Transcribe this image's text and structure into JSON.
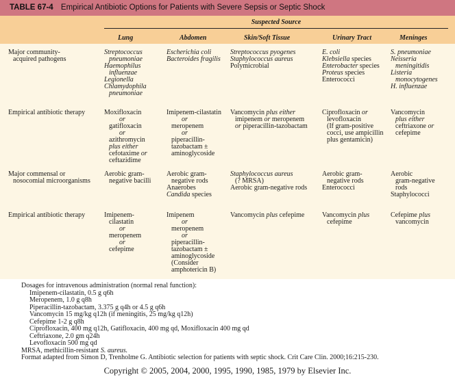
{
  "title": {
    "number": "TABLE 67-4",
    "text": "Empirical Antibiotic Options for Patients with Severe Sepsis or Septic Shock"
  },
  "colors": {
    "title_bar": "#cf7681",
    "header_band": "#f8cf97",
    "body": "#fdf6e4"
  },
  "header": {
    "group": "Suspected Source",
    "columns": [
      "Lung",
      "Abdomen",
      "Skin/Soft Tissue",
      "Urinary Tract",
      "Meninges"
    ]
  },
  "rows": [
    {
      "label": [
        [
          [
            "Major community-",
            false
          ]
        ],
        [
          [
            "acquired pathogens",
            false
          ]
        ]
      ],
      "label_indent": [
        0,
        1
      ],
      "cells": [
        {
          "lines": [
            [
              [
                "Streptococcus",
                true
              ]
            ],
            [
              [
                "pneumoniae",
                true
              ]
            ],
            [
              [
                "Haemophilus",
                true
              ]
            ],
            [
              [
                "influenzae",
                true
              ]
            ],
            [
              [
                "Legionella",
                true
              ]
            ],
            [
              [
                "Chlamydophila",
                true
              ]
            ],
            [
              [
                "pneumoniae",
                true
              ]
            ]
          ],
          "indent": [
            0,
            1,
            0,
            1,
            0,
            0,
            1
          ]
        },
        {
          "lines": [
            [
              [
                "Escherichia coli",
                true
              ]
            ],
            [
              [
                "Bacteroides fragilis",
                true
              ]
            ]
          ],
          "indent": [
            0,
            0
          ]
        },
        {
          "lines": [
            [
              [
                "Streptococcus pyogenes",
                true
              ]
            ],
            [
              [
                "Staphylococcus aureus",
                true
              ]
            ],
            [
              [
                "Polymicrobial",
                false
              ]
            ]
          ],
          "indent": [
            0,
            0,
            0
          ]
        },
        {
          "lines": [
            [
              [
                "E. coli",
                true
              ]
            ],
            [
              [
                "Klebsiella",
                true
              ],
              [
                " species",
                false
              ]
            ],
            [
              [
                "Enterobacter",
                true
              ],
              [
                " species",
                false
              ]
            ],
            [
              [
                "Proteus",
                true
              ],
              [
                " species",
                false
              ]
            ],
            [
              [
                "Enterococci",
                false
              ]
            ]
          ],
          "indent": [
            0,
            0,
            0,
            0,
            0
          ]
        },
        {
          "lines": [
            [
              [
                "S. pneumoniae",
                true
              ]
            ],
            [
              [
                "Neisseria",
                true
              ]
            ],
            [
              [
                "meningitidis",
                true
              ]
            ],
            [
              [
                "Listeria",
                true
              ]
            ],
            [
              [
                "monocytogenes",
                true
              ]
            ],
            [
              [
                "H. influenzae",
                true
              ]
            ]
          ],
          "indent": [
            0,
            0,
            1,
            0,
            1,
            0
          ]
        }
      ]
    },
    {
      "label": [
        [
          [
            "Empirical antibiotic therapy",
            false
          ]
        ]
      ],
      "label_indent": [
        0
      ],
      "cells": [
        {
          "lines": [
            [
              [
                "Moxifloxacin",
                false
              ]
            ],
            [
              [
                "or",
                true
              ]
            ],
            [
              [
                "gatifloxacin",
                false
              ]
            ],
            [
              [
                "or",
                true
              ]
            ],
            [
              [
                "azithromycin",
                false
              ]
            ],
            [
              [
                "plus either",
                true
              ]
            ],
            [
              [
                "cefotaxime ",
                false
              ],
              [
                "or",
                true
              ]
            ],
            [
              [
                "ceftazidime",
                false
              ]
            ]
          ],
          "indent": [
            0,
            2,
            1,
            2,
            1,
            1,
            1,
            1
          ]
        },
        {
          "lines": [
            [
              [
                "Imipenem-cilastatin",
                false
              ]
            ],
            [
              [
                "or",
                true
              ]
            ],
            [
              [
                "meropenem",
                false
              ]
            ],
            [
              [
                "or",
                true
              ]
            ],
            [
              [
                "piperacillin-",
                false
              ]
            ],
            [
              [
                "tazobactam ±",
                false
              ]
            ],
            [
              [
                "aminoglycoside",
                false
              ]
            ]
          ],
          "indent": [
            0,
            2,
            1,
            2,
            1,
            1,
            1
          ]
        },
        {
          "lines": [
            [
              [
                "Vancomycin ",
                false
              ],
              [
                "plus either",
                true
              ]
            ],
            [
              [
                "imipenem ",
                false
              ],
              [
                "or",
                true
              ],
              [
                " meropenem",
                false
              ]
            ],
            [
              [
                "or",
                true
              ],
              [
                " piperacillin-tazobactam",
                false
              ]
            ]
          ],
          "indent": [
            0,
            1,
            1
          ]
        },
        {
          "lines": [
            [
              [
                "Ciprofloxacin ",
                false
              ],
              [
                "or",
                true
              ]
            ],
            [
              [
                "levofloxacin",
                false
              ]
            ],
            [
              [
                "(If gram-positive",
                false
              ]
            ],
            [
              [
                "cocci, use ampicillin",
                false
              ]
            ],
            [
              [
                "plus gentamicin)",
                false
              ]
            ]
          ],
          "indent": [
            0,
            1,
            1,
            1,
            1
          ]
        },
        {
          "lines": [
            [
              [
                "Vancomycin",
                false
              ]
            ],
            [
              [
                "plus either",
                true
              ]
            ],
            [
              [
                "ceftriaxone ",
                false
              ],
              [
                "or",
                true
              ]
            ],
            [
              [
                "cefepime",
                false
              ]
            ]
          ],
          "indent": [
            0,
            1,
            1,
            1
          ]
        }
      ]
    },
    {
      "label": [
        [
          [
            "Major commensal or",
            false
          ]
        ],
        [
          [
            "nosocomial microorganisms",
            false
          ]
        ]
      ],
      "label_indent": [
        0,
        1
      ],
      "cells": [
        {
          "lines": [
            [
              [
                "Aerobic gram-",
                false
              ]
            ],
            [
              [
                "negative bacilli",
                false
              ]
            ]
          ],
          "indent": [
            0,
            1
          ]
        },
        {
          "lines": [
            [
              [
                "Aerobic gram-",
                false
              ]
            ],
            [
              [
                "negative rods",
                false
              ]
            ],
            [
              [
                "Anaerobes",
                false
              ]
            ],
            [
              [
                "Candida",
                true
              ],
              [
                " species",
                false
              ]
            ]
          ],
          "indent": [
            0,
            1,
            0,
            0
          ]
        },
        {
          "lines": [
            [
              [
                "Staphylococcus aureus",
                true
              ]
            ],
            [
              [
                "(? MRSA)",
                false
              ]
            ],
            [
              [
                "Aerobic gram-negative rods",
                false
              ]
            ]
          ],
          "indent": [
            0,
            1,
            0
          ]
        },
        {
          "lines": [
            [
              [
                "Aerobic gram-",
                false
              ]
            ],
            [
              [
                "negative rods",
                false
              ]
            ],
            [
              [
                "Enterococci",
                false
              ]
            ]
          ],
          "indent": [
            0,
            1,
            0
          ]
        },
        {
          "lines": [
            [
              [
                "Aerobic",
                false
              ]
            ],
            [
              [
                "gram-negative",
                false
              ]
            ],
            [
              [
                "rods",
                false
              ]
            ],
            [
              [
                "Staphylococci",
                false
              ]
            ]
          ],
          "indent": [
            0,
            1,
            1,
            0
          ]
        }
      ]
    },
    {
      "label": [
        [
          [
            "Empirical antibiotic therapy",
            false
          ]
        ]
      ],
      "label_indent": [
        0
      ],
      "cells": [
        {
          "lines": [
            [
              [
                "Imipenem-",
                false
              ]
            ],
            [
              [
                "cilastatin",
                false
              ]
            ],
            [
              [
                "or",
                true
              ]
            ],
            [
              [
                "meropenem",
                false
              ]
            ],
            [
              [
                "or",
                true
              ]
            ],
            [
              [
                "cefepime",
                false
              ]
            ]
          ],
          "indent": [
            0,
            1,
            2,
            1,
            2,
            1
          ]
        },
        {
          "lines": [
            [
              [
                "Imipenem",
                false
              ]
            ],
            [
              [
                "or",
                true
              ]
            ],
            [
              [
                "meropenem",
                false
              ]
            ],
            [
              [
                "or",
                true
              ]
            ],
            [
              [
                "piperacillin-",
                false
              ]
            ],
            [
              [
                "tazobactam ±",
                false
              ]
            ],
            [
              [
                "aminoglycoside",
                false
              ]
            ],
            [
              [
                "(Consider",
                false
              ]
            ],
            [
              [
                "amphotericin B)",
                false
              ]
            ]
          ],
          "indent": [
            0,
            2,
            1,
            2,
            1,
            1,
            1,
            1,
            1
          ]
        },
        {
          "lines": [
            [
              [
                "Vancomycin ",
                false
              ],
              [
                "plus",
                true
              ],
              [
                " cefepime",
                false
              ]
            ]
          ],
          "indent": [
            0
          ]
        },
        {
          "lines": [
            [
              [
                "Vancomycin ",
                false
              ],
              [
                "plus",
                true
              ]
            ],
            [
              [
                "cefepime",
                false
              ]
            ]
          ],
          "indent": [
            0,
            1
          ]
        },
        {
          "lines": [
            [
              [
                "Cefepime ",
                false
              ],
              [
                "plus",
                true
              ]
            ],
            [
              [
                "vancomycin",
                false
              ]
            ]
          ],
          "indent": [
            0,
            1
          ]
        }
      ]
    }
  ],
  "notes": {
    "dosage_heading": "Dosages for intravenous administration (normal renal function):",
    "dosages": [
      "Imipenem-cilastatin, 0.5 g q6h",
      "Meropenem, 1.0 g q8h",
      "Piperacillin-tazobactam, 3.375 g q4h or 4.5 g q6h",
      "Vancomycin 15 mg/kg q12h (if meningitis, 25 mg/kg q12h)",
      "Cefepime 1-2 g q8h",
      "Ciprofloxacin, 400 mg q12h, Gatifloxacin, 400 mg qd, Moxifloxacin 400 mg qd",
      "Ceftriaxone, 2.0 gm q24h",
      "Levofloxacin 500 mg qd"
    ],
    "mrsa_prefix": "MRSA, methicillin-resistant ",
    "mrsa_italic": "S. aureus.",
    "source": "Format adapted from Simon D, Trenholme G. Antibiotic selection for patients with septic shock. Crit Care Clin. 2000;16:215-230."
  },
  "copyright": "Copyright © 2005, 2004, 2000, 1995, 1990, 1985, 1979 by Elsevier Inc."
}
